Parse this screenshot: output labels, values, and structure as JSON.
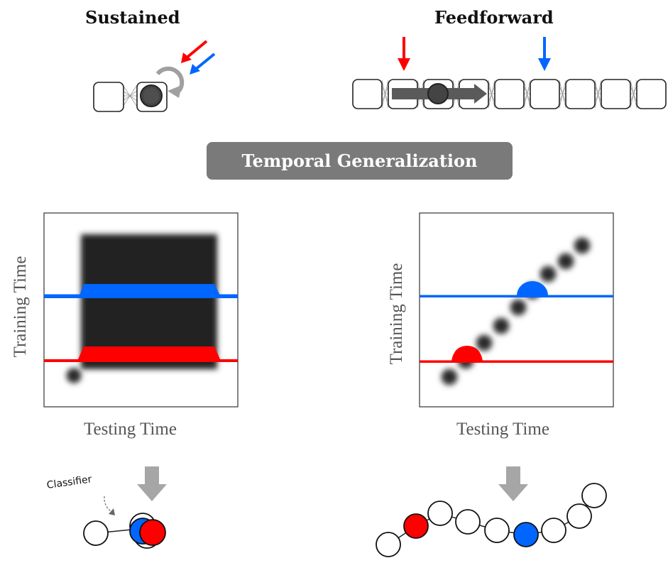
{
  "panels": {
    "sustained": {
      "title": "Sustained"
    },
    "feedforward": {
      "title": "Feedforward"
    }
  },
  "banner": {
    "label": "Temporal Generalization"
  },
  "matrix_left": {
    "xlabel": "Testing Time",
    "ylabel": "Training Time"
  },
  "matrix_right": {
    "xlabel": "Testing Time",
    "ylabel": "Training Time"
  },
  "classifier": {
    "label": "Classifier"
  },
  "colors": {
    "red": "#ff0000",
    "blue": "#0066ff",
    "gray": "#808080",
    "dark": "#222222",
    "banner": "#7a7a7a"
  }
}
